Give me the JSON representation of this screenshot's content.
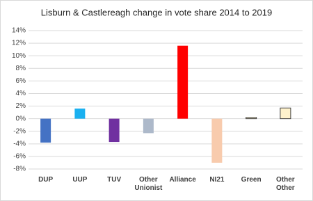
{
  "chart_data": {
    "type": "bar",
    "title": "Lisburn & Castlereagh change in vote share 2014 to 2019",
    "categories": [
      "DUP",
      "UUP",
      "TUV",
      "Other Unionist",
      "Alliance",
      "NI21",
      "Green",
      "Other Other"
    ],
    "values": [
      -3.8,
      1.6,
      -3.7,
      -2.3,
      11.6,
      -7.0,
      0.2,
      1.7
    ],
    "colors": [
      "#4472c4",
      "#1ab0f0",
      "#7030a0",
      "#adb9ca",
      "#ff0000",
      "#f8cbad",
      "#fff2cc",
      "#fff2cc"
    ],
    "edge_colors": [
      null,
      null,
      null,
      null,
      null,
      null,
      "#404040",
      "#404040"
    ],
    "ylim": [
      -8,
      14
    ],
    "yticks": [
      {
        "value": -8,
        "label": "-8%"
      },
      {
        "value": -6,
        "label": "-6%"
      },
      {
        "value": -4,
        "label": "-4%"
      },
      {
        "value": -2,
        "label": "-2%"
      },
      {
        "value": 0,
        "label": "0%"
      },
      {
        "value": 2,
        "label": "2%"
      },
      {
        "value": 4,
        "label": "4%"
      },
      {
        "value": 6,
        "label": "6%"
      },
      {
        "value": 8,
        "label": "8%"
      },
      {
        "value": 10,
        "label": "10%"
      },
      {
        "value": 12,
        "label": "12%"
      },
      {
        "value": 14,
        "label": "14%"
      }
    ],
    "grid": true
  }
}
